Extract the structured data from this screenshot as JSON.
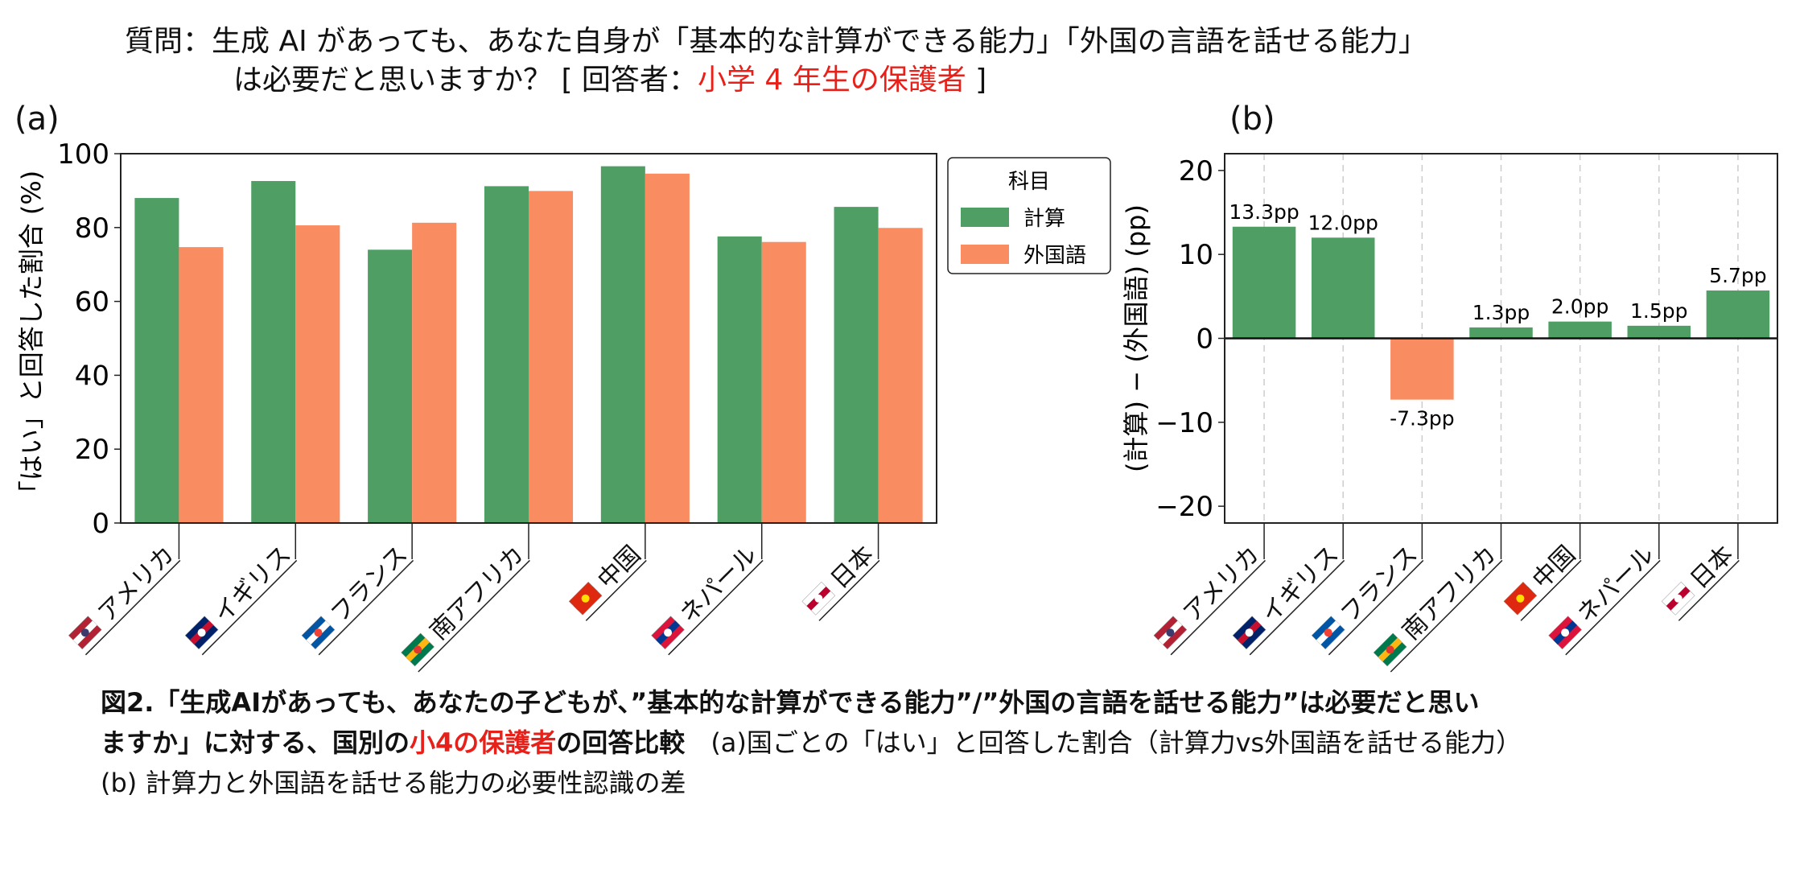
{
  "title": {
    "line1": "質問：生成 AI があっても、あなた自身が「基本的な計算ができる能力」「外国の言語を話せる能力」",
    "line2_prefix": "は必要だと思いますか？ [ 回答者：",
    "line2_highlight": "小学 4 年生の保護者",
    "line2_suffix": " ]"
  },
  "colors": {
    "calc": "#4f9f65",
    "lang": "#fa8c61",
    "highlight": "#e8201a"
  },
  "chart_data": [
    {
      "type": "bar",
      "panel_label": "(a)",
      "ylabel": "「はい」と回答した割合 (%)",
      "ylim": [
        0,
        100
      ],
      "yticks": [
        0,
        20,
        40,
        60,
        80,
        100
      ],
      "grid": false,
      "categories": [
        "アメリカ",
        "イギリス",
        "フランス",
        "南アフリカ",
        "中国",
        "ネパール",
        "日本"
      ],
      "flags": [
        "flag-us",
        "flag-uk",
        "flag-france",
        "flag-south-africa",
        "flag-china",
        "flag-nepal",
        "flag-japan"
      ],
      "legend": {
        "title": "科目",
        "placement": "right"
      },
      "series": [
        {
          "name": "計算",
          "values": [
            88.0,
            92.6,
            74.0,
            91.2,
            96.6,
            77.6,
            85.6
          ]
        },
        {
          "name": "外国語",
          "values": [
            74.7,
            80.6,
            81.3,
            89.9,
            94.6,
            76.1,
            79.9
          ]
        }
      ]
    },
    {
      "type": "bar",
      "panel_label": "(b)",
      "ylabel": "(計算) − (外国語) (pp)",
      "ylim": [
        -22,
        22
      ],
      "yticks": [
        -20,
        -10,
        0,
        10,
        20
      ],
      "ytick_labels": [
        "−20",
        "−10",
        "0",
        "10",
        "20"
      ],
      "grid": "vertical dashed",
      "categories": [
        "アメリカ",
        "イギリス",
        "フランス",
        "南アフリカ",
        "中国",
        "ネパール",
        "日本"
      ],
      "values": [
        13.3,
        12.0,
        -7.3,
        1.3,
        2.0,
        1.5,
        5.7
      ],
      "data_labels": [
        "13.3pp",
        "12.0pp",
        "-7.3pp",
        "1.3pp",
        "2.0pp",
        "1.5pp",
        "5.7pp"
      ]
    }
  ],
  "caption": {
    "line1": "図2.「生成AIがあっても、あなたの子どもが、”基本的な計算ができる能力”/”外国の言語を話せる能力”は必要だと思い",
    "line2_a": "ますか」に対する、国別の",
    "line2_red": "小4の保護者",
    "line2_b": "の回答比較",
    "line2_c": "　(a)国ごとの「はい」と回答した割合（計算力vs外国語を話せる能力）",
    "line3": "(b) 計算力と外国語を話せる能力の必要性認識の差"
  }
}
